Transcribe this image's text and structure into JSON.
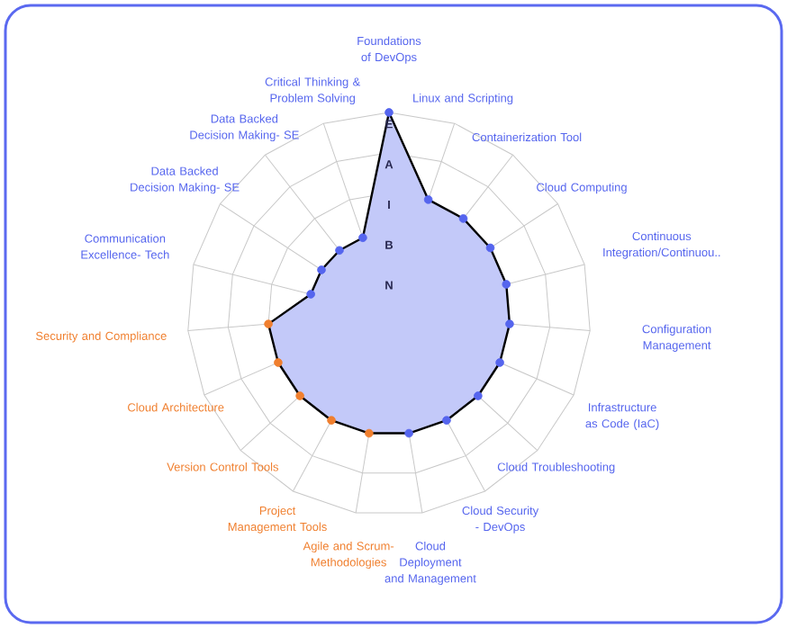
{
  "chart_data": {
    "type": "radar",
    "categories": [
      "Foundations of DevOps",
      "Linux and Scripting",
      "Containerization Tool",
      "Cloud Computing",
      "Continuous Integration/Continuou..",
      "Configuration Management",
      "Infrastructure as Code (IaC)",
      "Cloud Troubleshooting",
      "Cloud Security - DevOps",
      "Cloud Deployment and Management",
      "Agile and Scrum-Methodologies",
      "Project Management Tools",
      "Version Control Tools",
      "Cloud Architecture",
      "Security and Compliance",
      "Communication Excellence- Tech",
      "Data Backed Decision Making- SE",
      "Data Backed Decision Making- SE",
      "Critical Thinking & Problem Solving"
    ],
    "series": [
      {
        "color": "#c3c9f9",
        "values": [
          5,
          3,
          3,
          3,
          3,
          3,
          3,
          3,
          3,
          3,
          3,
          3,
          3,
          3,
          3,
          2,
          2,
          2,
          2
        ],
        "colors": [
          "#5565ee",
          "#5565ee",
          "#5565ee",
          "#5565ee",
          "#5565ee",
          "#5565ee",
          "#5565ee",
          "#5565ee",
          "#5565ee",
          "#5565ee",
          "#f07f2e",
          "#f07f2e",
          "#f07f2e",
          "#f07f2e",
          "#f07f2e",
          "#5565ee",
          "#5565ee",
          "#5565ee",
          "#5565ee"
        ]
      }
    ],
    "ylim": [
      0,
      5
    ],
    "yticks": [
      {
        "value": 1,
        "label": "N"
      },
      {
        "value": 2,
        "label": "B"
      },
      {
        "value": 3,
        "label": "I"
      },
      {
        "value": 4,
        "label": "A"
      },
      {
        "value": 5,
        "label": "E"
      }
    ],
    "grid": true,
    "marker": "circle"
  }
}
